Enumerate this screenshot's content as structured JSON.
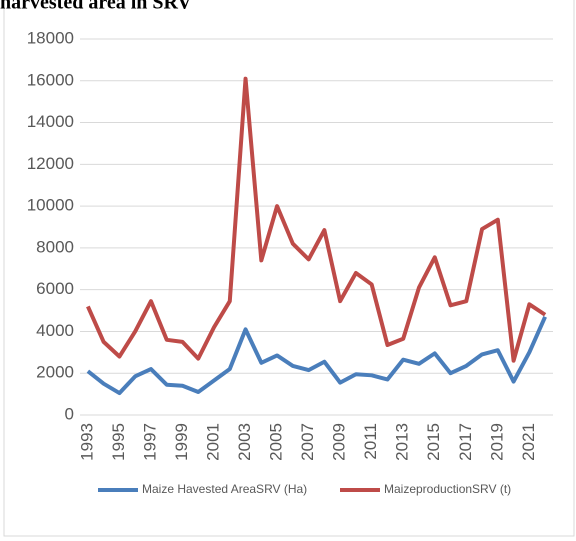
{
  "chart_data": {
    "type": "line",
    "title": "harvested area in SRV",
    "categories": [
      "1993",
      null,
      "1995",
      null,
      "1997",
      null,
      "1999",
      null,
      "2001",
      null,
      "2003",
      null,
      "2005",
      null,
      "2007",
      null,
      "2009",
      null,
      "2011",
      null,
      "2013",
      null,
      "2015",
      null,
      "2017",
      null,
      "2019",
      null,
      "2021",
      null
    ],
    "series": [
      {
        "name": "Maize Havested AreaSRV (Ha)",
        "color": "#4a7ebb",
        "values": [
          2100,
          1500,
          1050,
          1850,
          2200,
          1450,
          1400,
          1100,
          1650,
          2200,
          4100,
          2500,
          2850,
          2350,
          2150,
          2550,
          1550,
          1950,
          1900,
          1700,
          2650,
          2450,
          2950,
          2000,
          2350,
          2900,
          3100,
          1600,
          3000,
          4700
        ]
      },
      {
        "name": "MaizeproductionSRV (t)",
        "color": "#be4b48",
        "values": [
          5200,
          3500,
          2800,
          4000,
          5450,
          3600,
          3500,
          2700,
          4200,
          5450,
          16100,
          7400,
          10000,
          8200,
          7450,
          8850,
          5450,
          6800,
          6250,
          3350,
          3650,
          6100,
          7550,
          5250,
          5450,
          8900,
          9350,
          2600,
          5300,
          4800
        ]
      }
    ],
    "ylim": [
      0,
      18000
    ],
    "yticks": [
      0,
      2000,
      4000,
      6000,
      8000,
      10000,
      12000,
      14000,
      16000,
      18000
    ],
    "grid": true,
    "legend": "bottom"
  }
}
